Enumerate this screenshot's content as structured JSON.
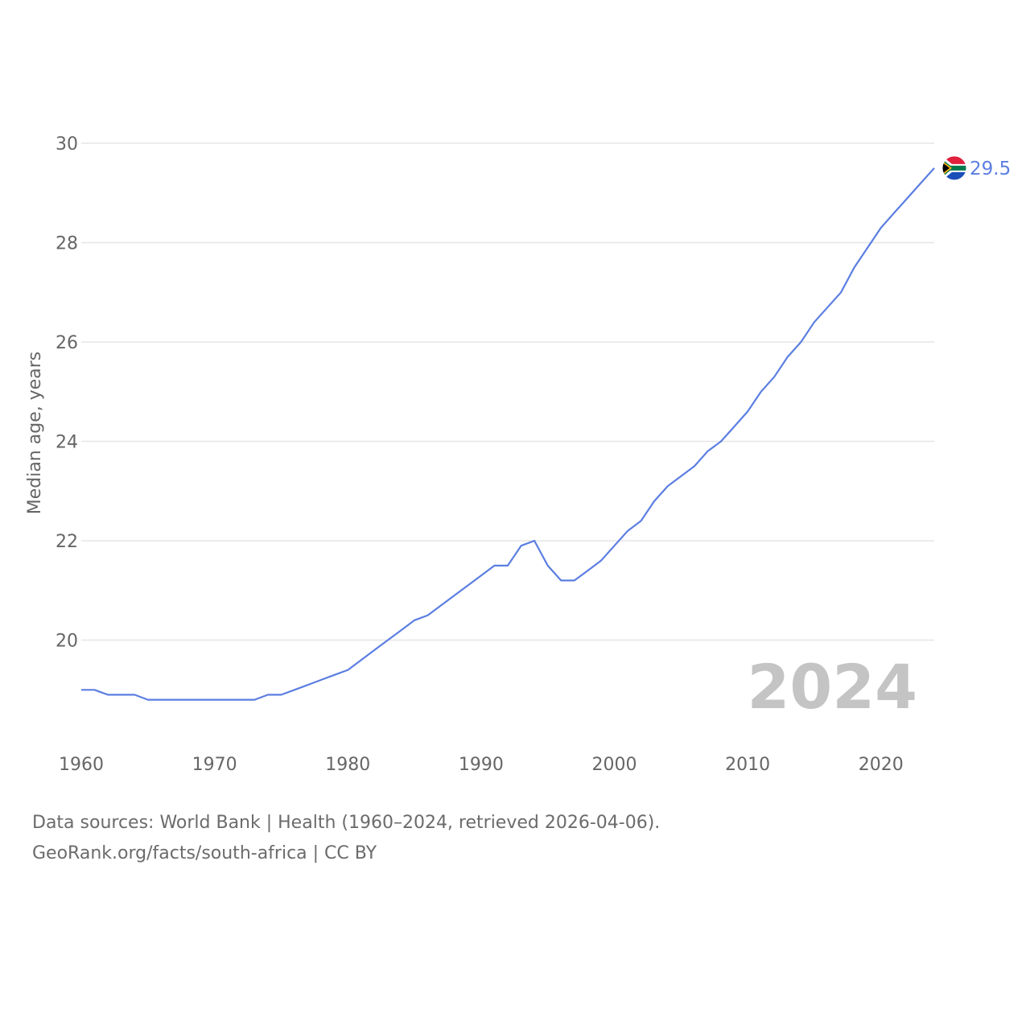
{
  "chart_data": {
    "type": "line",
    "title": "",
    "xlabel": "",
    "ylabel": "Median age, years",
    "xlim": [
      1960,
      2024
    ],
    "ylim": [
      18,
      30
    ],
    "x_ticks": [
      1960,
      1970,
      1980,
      1990,
      2000,
      2010,
      2020
    ],
    "y_ticks": [
      20,
      22,
      24,
      26,
      28,
      30
    ],
    "grid": true,
    "series": [
      {
        "name": "South Africa",
        "color": "#5b7ee1",
        "x": [
          1960,
          1961,
          1962,
          1963,
          1964,
          1965,
          1966,
          1967,
          1968,
          1969,
          1970,
          1971,
          1972,
          1973,
          1974,
          1975,
          1976,
          1977,
          1978,
          1979,
          1980,
          1981,
          1982,
          1983,
          1984,
          1985,
          1986,
          1987,
          1988,
          1989,
          1990,
          1991,
          1992,
          1993,
          1994,
          1995,
          1996,
          1997,
          1998,
          1999,
          2000,
          2001,
          2002,
          2003,
          2004,
          2005,
          2006,
          2007,
          2008,
          2009,
          2010,
          2011,
          2012,
          2013,
          2014,
          2015,
          2016,
          2017,
          2018,
          2019,
          2020,
          2021,
          2022,
          2023,
          2024
        ],
        "values": [
          19.0,
          19.0,
          18.9,
          18.9,
          18.9,
          18.8,
          18.8,
          18.8,
          18.8,
          18.8,
          18.8,
          18.8,
          18.8,
          18.8,
          18.9,
          18.9,
          19.0,
          19.1,
          19.2,
          19.3,
          19.4,
          19.6,
          19.8,
          20.0,
          20.2,
          20.4,
          20.5,
          20.7,
          20.9,
          21.1,
          21.3,
          21.5,
          21.5,
          21.9,
          22.0,
          21.5,
          21.2,
          21.2,
          21.4,
          21.6,
          21.9,
          22.2,
          22.4,
          22.8,
          23.1,
          23.3,
          23.5,
          23.8,
          24.0,
          24.3,
          24.6,
          25.0,
          25.3,
          25.7,
          26.0,
          26.4,
          26.7,
          27.0,
          27.5,
          27.9,
          28.3,
          28.6,
          28.9,
          29.2,
          29.5
        ]
      }
    ],
    "end_label": "29.5",
    "year_label": "2024",
    "flag_colors": {
      "red": "#e0203c",
      "blue": "#1a4fb8",
      "green": "#007a4d",
      "black": "#000000",
      "gold": "#ffb612",
      "white": "#ffffff"
    }
  },
  "footer": {
    "sources": "Data sources: World Bank | Health (1960–2024, retrieved 2026-04-06).",
    "attribution": "GeoRank.org/facts/south-africa | CC BY"
  }
}
